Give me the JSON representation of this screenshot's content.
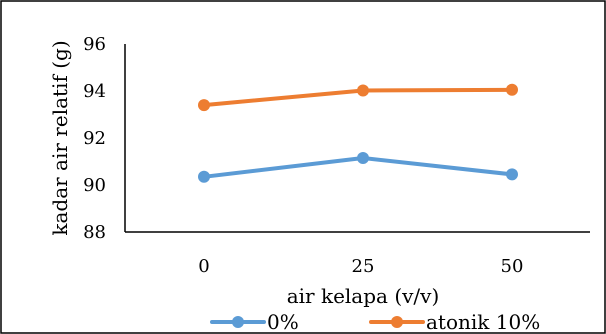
{
  "chart_data": {
    "type": "line",
    "xlabel": "air kelapa (v/v)",
    "ylabel": "kadar air relatif (g)",
    "categories": [
      "0",
      "25",
      "50"
    ],
    "y_ticks": [
      "88",
      "90",
      "92",
      "94",
      "96"
    ],
    "ylim": [
      88,
      96
    ],
    "grid": false,
    "legend_position": "bottom",
    "series": [
      {
        "name": "0%",
        "values": [
          90.35,
          91.15,
          90.45
        ],
        "color": "#5B9BD5"
      },
      {
        "name": "atonik 10%",
        "values": [
          93.4,
          94.02,
          94.05
        ],
        "color": "#ED7D31"
      }
    ]
  }
}
